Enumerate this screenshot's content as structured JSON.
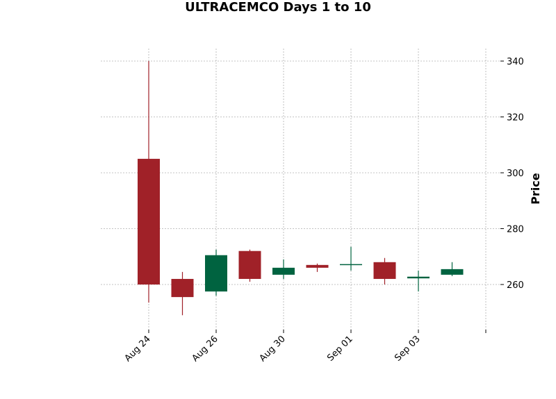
{
  "chart_data": {
    "type": "candlestick",
    "title": "ULTRACEMCO Days 1 to 10",
    "xlabel": "",
    "ylabel": "Price",
    "ylim": [
      244,
      344
    ],
    "yticks": [
      260,
      280,
      300,
      320,
      340
    ],
    "xtick_labels": [
      {
        "index": 0,
        "label": "Aug 24"
      },
      {
        "index": 2,
        "label": "Aug 26"
      },
      {
        "index": 4,
        "label": "Aug 30"
      },
      {
        "index": 6,
        "label": "Sep 01"
      },
      {
        "index": 8,
        "label": "Sep 03"
      },
      {
        "index": 10,
        "label": ""
      }
    ],
    "grid": true,
    "up_color": "#006340",
    "down_color": "#a02128",
    "grid_color": "#b0b0b0",
    "series": [
      {
        "open": 305,
        "high": 340,
        "low": 253.5,
        "close": 260
      },
      {
        "open": 262,
        "high": 264.5,
        "low": 249,
        "close": 255.5
      },
      {
        "open": 257.5,
        "high": 272.5,
        "low": 256,
        "close": 270.5
      },
      {
        "open": 272,
        "high": 272.5,
        "low": 261,
        "close": 262
      },
      {
        "open": 263.5,
        "high": 269,
        "low": 262,
        "close": 266
      },
      {
        "open": 267,
        "high": 267.5,
        "low": 264.5,
        "close": 266
      },
      {
        "open": 267,
        "high": 273.5,
        "low": 265,
        "close": 267.3
      },
      {
        "open": 268,
        "high": 269.5,
        "low": 260,
        "close": 262
      },
      {
        "open": 262.2,
        "high": 265,
        "low": 257.5,
        "close": 262.8
      },
      {
        "open": 263.5,
        "high": 268,
        "low": 263,
        "close": 265.5
      }
    ]
  }
}
